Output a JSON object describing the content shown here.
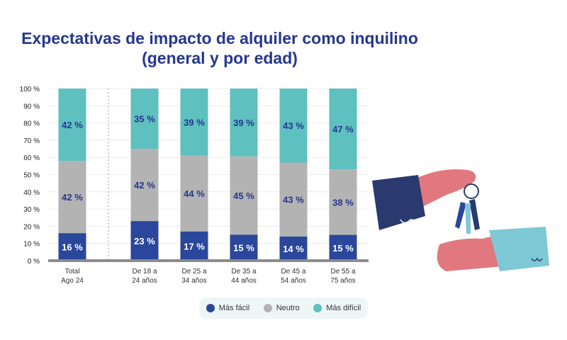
{
  "chart_data": {
    "type": "bar",
    "stacked": true,
    "title": "Expectativas de impacto de alquiler como inquilino (general y por edad)",
    "title_lines": [
      "Expectativas de impacto de alquiler como inquilino",
      "(general y por edad)"
    ],
    "categories": [
      [
        "Total",
        "Ago 24"
      ],
      [
        "De 18 a",
        "24 años"
      ],
      [
        "De 25 a",
        "34 años"
      ],
      [
        "De 35 a",
        "44 años"
      ],
      [
        "De 45 a",
        "54 años"
      ],
      [
        "De 55 a",
        "75 años"
      ]
    ],
    "series": [
      {
        "name": "Más fácil",
        "color": "#2a479b",
        "values": [
          16,
          23,
          17,
          15,
          14,
          15
        ]
      },
      {
        "name": "Neutro",
        "color": "#b3b3b3",
        "values": [
          42,
          42,
          44,
          45,
          43,
          38
        ]
      },
      {
        "name": "Más difícil",
        "color": "#5ec0bf",
        "values": [
          42,
          35,
          39,
          39,
          43,
          47
        ]
      }
    ],
    "ylim": [
      0,
      100
    ],
    "yticks": [
      "0 %",
      "10 %",
      "20 %",
      "30 %",
      "40 %",
      "50 %",
      "60 %",
      "70 %",
      "80 %",
      "90 %",
      "100 %"
    ],
    "label_suffix": " %",
    "grid": true,
    "legend_position": "bottom",
    "separator_after_category": 0
  },
  "illustration": "hand-passing-keys-icon"
}
